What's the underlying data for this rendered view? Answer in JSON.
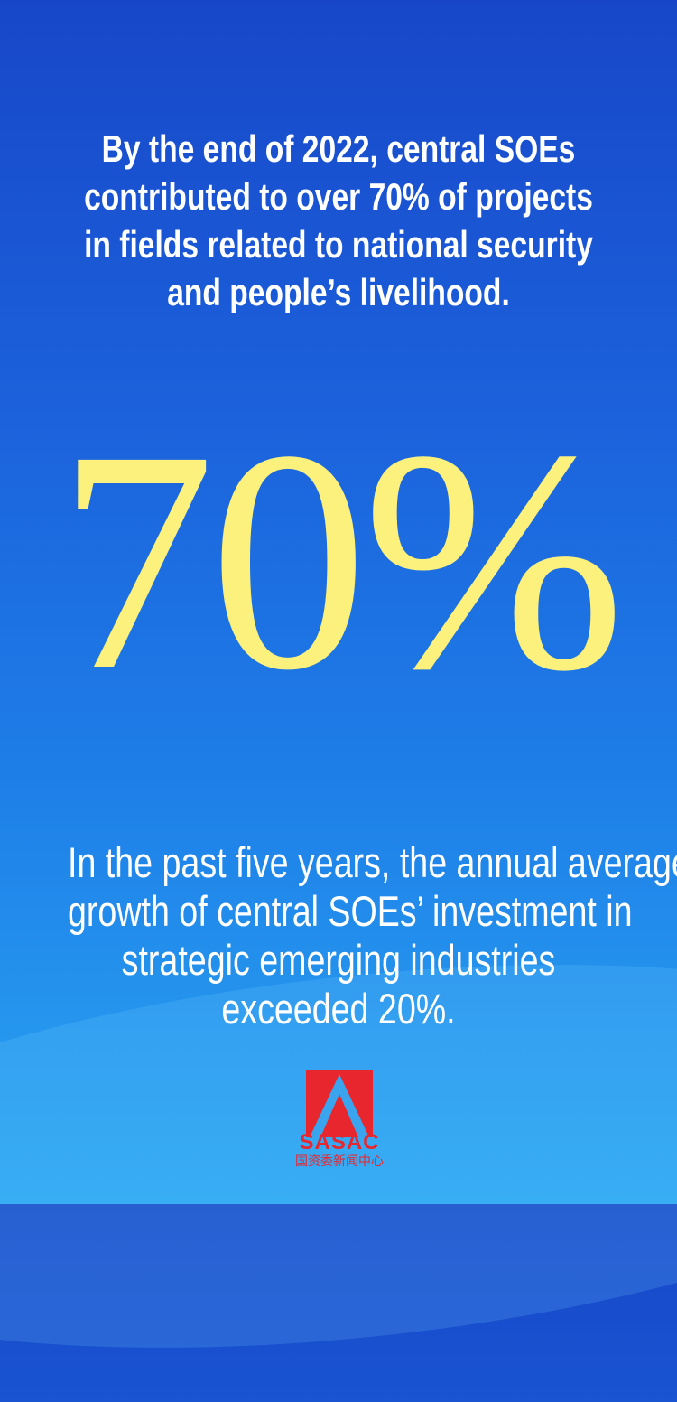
{
  "headline": {
    "lines": [
      "By the end of 2022, central SOEs",
      "contributed to over 70% of projects",
      "in fields related to national security",
      "and people’s livelihood."
    ]
  },
  "big_stat": "70%",
  "subtext": {
    "lines": [
      "In the past five years, the annual average",
      "growth of central SOEs’ investment in",
      "strategic emerging industries",
      "exceeded 20%."
    ]
  },
  "logo": {
    "name": "SASAC",
    "caption": "国资委新闻中心"
  },
  "colors": {
    "stat": "#fbf17c",
    "logo_red": "#e8262d"
  }
}
